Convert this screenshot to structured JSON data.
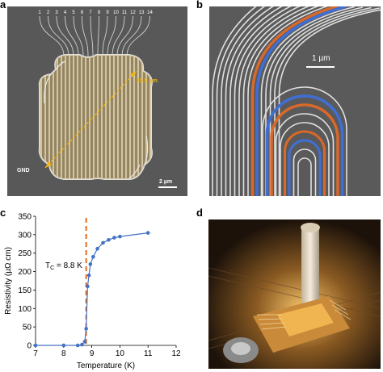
{
  "panel_labels": {
    "a": "a",
    "b": "b",
    "c": "c",
    "d": "d"
  },
  "panel_a": {
    "wire_numbers": [
      "1",
      "2",
      "3",
      "4",
      "5",
      "6",
      "7",
      "8",
      "9",
      "10",
      "11",
      "12",
      "13",
      "14"
    ],
    "diameter_label": "15.5 µm",
    "gnd_label": "GND",
    "scalebar_label": "2 µm",
    "colors": {
      "background": "#585858",
      "wire": "#d4d4d4",
      "overlay": "#d8b56a",
      "arrow": "#f5b60c"
    }
  },
  "panel_b": {
    "scalebar_label": "1 µm",
    "colors": {
      "background": "#5a5a5a",
      "wire": "#e0e0e0",
      "orange": "#d8692a",
      "blue": "#3f6fd6"
    }
  },
  "chart_data": {
    "type": "line",
    "xlabel": "Temperature (K)",
    "ylabel": "Resistivity (µΩ cm)",
    "xlim": [
      7,
      12
    ],
    "ylim": [
      0,
      350
    ],
    "xticks": [
      7,
      8,
      9,
      10,
      11,
      12
    ],
    "yticks": [
      0,
      50,
      100,
      150,
      200,
      250,
      300,
      350
    ],
    "series": [
      {
        "x": [
          7.0,
          8.0,
          8.5,
          8.65,
          8.75,
          8.8,
          8.85,
          8.9,
          8.95,
          9.05,
          9.2,
          9.4,
          9.6,
          9.8,
          10.0,
          11.0
        ],
        "y": [
          0,
          0,
          0,
          2,
          10,
          45,
          160,
          190,
          220,
          240,
          262,
          278,
          286,
          292,
          295,
          305
        ],
        "color": "#4472c4"
      }
    ],
    "annotation": {
      "text_main": "T",
      "text_sub": "C",
      "text_rest": " = 8.8 K",
      "x": 8.8,
      "line_color": "#e26b1e"
    },
    "grid": false
  },
  "panel_d": {
    "description_colors": {
      "bg": "#2b1a0d",
      "holder": "#efe6d2",
      "gold": "#f0b450"
    }
  }
}
